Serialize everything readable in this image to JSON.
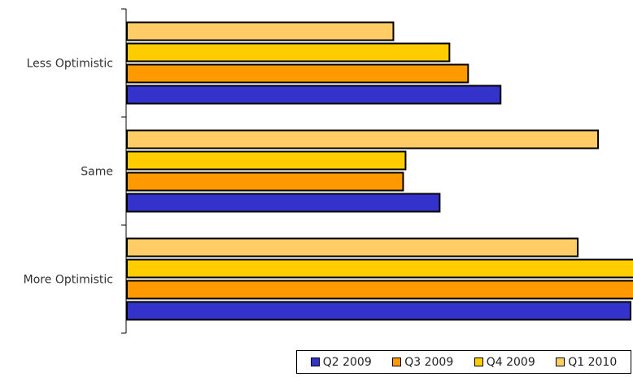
{
  "chart_data": {
    "type": "bar",
    "orientation": "horizontal",
    "title": "",
    "xlabel": "",
    "ylabel": "",
    "categories": [
      "Less Optimistic",
      "Same",
      "More Optimistic"
    ],
    "series": [
      {
        "name": "Q2 2009",
        "color": "#3333cc",
        "values": [
          46,
          38.5,
          62
        ]
      },
      {
        "name": "Q3 2009",
        "color": "#ff9900",
        "values": [
          42,
          34,
          63
        ]
      },
      {
        "name": "Q4 2009",
        "color": "#ffcc00",
        "values": [
          39.7,
          34.3,
          63
        ]
      },
      {
        "name": "Q1 2010",
        "color": "#ffcc66",
        "values": [
          32.8,
          58,
          55.5
        ]
      }
    ],
    "xlim": [
      0,
      62.4
    ],
    "grid": false,
    "legend_position": "bottom-right"
  }
}
